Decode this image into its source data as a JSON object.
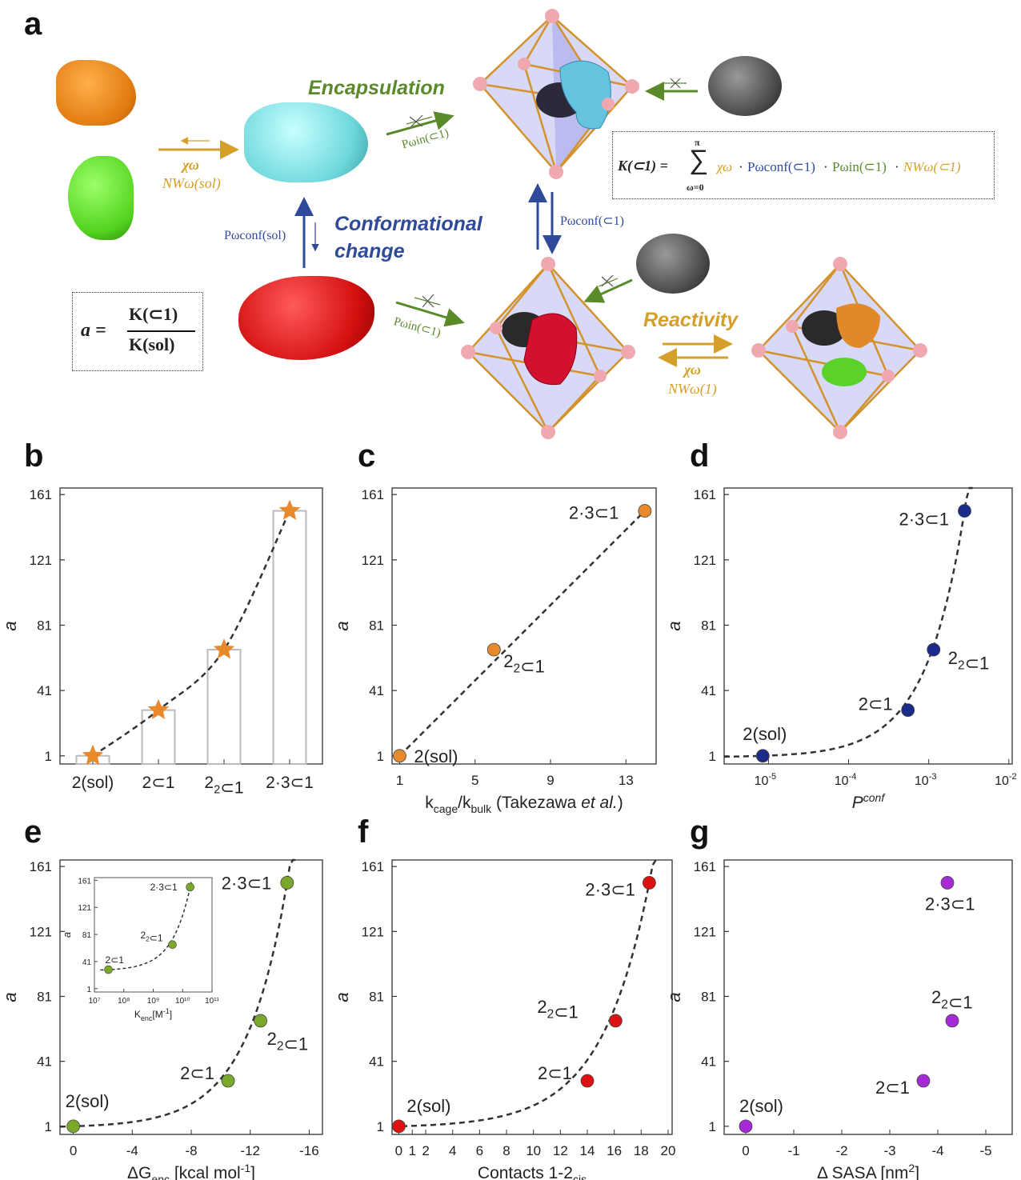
{
  "panels": {
    "a": "a",
    "b": "b",
    "c": "c",
    "d": "d",
    "e": "e",
    "f": "f",
    "g": "g"
  },
  "schematic": {
    "encapsulation": "Encapsulation",
    "conformational_change": [
      "Conformational",
      "change"
    ],
    "reactivity": "Reactivity",
    "chi": "χω",
    "nw_sol": "NWω(sol)",
    "nw_1": "NWω(1)",
    "pconf_sol": "Pωconf(sol)",
    "pconf_cage": "Pωconf(⊂1)",
    "pin_cage": "Pωin(⊂1)",
    "eq_a_lhs": "a =",
    "eq_a_num": "K(⊂1)",
    "eq_a_den": "K(sol)",
    "eq_k_lhs": "K(⊂1) =",
    "eq_k_sum_top": "π",
    "eq_k_sum_bot": "ω=0",
    "eq_k_terms": [
      "χω",
      "·",
      "Pωconf(⊂1)",
      "·",
      "Pωin(⊂1)",
      "·",
      "NWω(⊂1)"
    ],
    "colors": {
      "gold": "#d4a02a",
      "green": "#5a8a2a",
      "blue": "#2f4a9a"
    }
  },
  "chart_data": [
    {
      "panel": "b",
      "type": "bar",
      "categories": [
        "2(sol)",
        "2⊂1",
        "2₂⊂1",
        "2·3⊂1"
      ],
      "values": [
        1,
        29,
        66,
        151
      ],
      "markers": [
        1,
        29,
        66,
        151
      ],
      "ylabel": "a",
      "xlabel": "",
      "ylim": [
        -4,
        165
      ],
      "yticks": [
        1,
        41,
        81,
        121,
        161
      ],
      "marker": "star",
      "color": "#e88a2c"
    },
    {
      "panel": "c",
      "type": "scatter",
      "points": [
        {
          "x": 1,
          "y": 1,
          "label": "2(sol)"
        },
        {
          "x": 6,
          "y": 66,
          "label": "2₂⊂1"
        },
        {
          "x": 14,
          "y": 151,
          "label": "2·3⊂1"
        }
      ],
      "xlabel": "kcage/kbulk (Takezawa et al.)",
      "ylabel": "a",
      "xlim": [
        0.6,
        14.6
      ],
      "xticks": [
        1,
        5,
        9,
        13
      ],
      "ylim": [
        -4,
        165
      ],
      "yticks": [
        1,
        41,
        81,
        121,
        161
      ],
      "color": "#e88a2c",
      "fit": "linear"
    },
    {
      "panel": "d",
      "type": "scatter",
      "xscale": "log",
      "points": [
        {
          "x": 8.5e-06,
          "y": 1,
          "label": "2(sol)"
        },
        {
          "x": 0.00055,
          "y": 29,
          "label": "2⊂1"
        },
        {
          "x": 0.00115,
          "y": 66,
          "label": "2₂⊂1"
        },
        {
          "x": 0.0028,
          "y": 151,
          "label": "2·3⊂1"
        }
      ],
      "xlabel": "Pconf",
      "ylabel": "a",
      "xlim": [
        2.8e-06,
        0.011
      ],
      "xticks": [
        "10-5",
        "10-4",
        "10-3",
        "10-2"
      ],
      "ylim": [
        -4,
        165
      ],
      "yticks": [
        1,
        41,
        81,
        121,
        161
      ],
      "color": "#1a2b8a",
      "fit": "exponential"
    },
    {
      "panel": "e",
      "type": "scatter",
      "points": [
        {
          "x": 0,
          "y": 1,
          "label": "2(sol)"
        },
        {
          "x": -10.5,
          "y": 29,
          "label": "2⊂1"
        },
        {
          "x": -12.7,
          "y": 66,
          "label": "2₂⊂1"
        },
        {
          "x": -14.5,
          "y": 151,
          "label": "2·3⊂1"
        }
      ],
      "xlabel": "ΔGenc [kcal mol-1]",
      "ylabel": "a",
      "xlim": [
        0.9,
        -16.9
      ],
      "xticks": [
        0,
        -4,
        -8,
        -12,
        -16
      ],
      "ylim": [
        -4,
        165
      ],
      "yticks": [
        1,
        41,
        81,
        121,
        161
      ],
      "color": "#7aa82a",
      "fit": "exponential",
      "inset": {
        "type": "scatter",
        "xscale": "log",
        "points": [
          {
            "x": 30000000,
            "y": 29,
            "label": "2⊂1"
          },
          {
            "x": 4500000000,
            "y": 66,
            "label": "2₂⊂1"
          },
          {
            "x": 18000000000,
            "y": 151,
            "label": "2·3⊂1"
          }
        ],
        "xlabel": "Kenc[M-1]",
        "ylabel": "a",
        "xticks": [
          "10⁷",
          "10⁸",
          "10⁹",
          "10¹⁰",
          "10¹¹"
        ],
        "yticks": [
          1,
          41,
          81,
          121,
          161
        ]
      }
    },
    {
      "panel": "f",
      "type": "scatter",
      "points": [
        {
          "x": 0,
          "y": 1,
          "label": "2(sol)"
        },
        {
          "x": 14,
          "y": 29,
          "label": "2⊂1"
        },
        {
          "x": 16.1,
          "y": 66,
          "label": "2₂⊂1"
        },
        {
          "x": 18.6,
          "y": 151,
          "label": "2·3⊂1"
        }
      ],
      "xlabel": "Contacts 1-2cis",
      "ylabel": "a",
      "xlim": [
        -0.5,
        20.3
      ],
      "xticks": [
        0,
        1,
        2,
        4,
        6,
        8,
        10,
        12,
        14,
        16,
        18,
        20
      ],
      "ylim": [
        -4,
        165
      ],
      "yticks": [
        1,
        41,
        81,
        121,
        161
      ],
      "color": "#dd1111",
      "fit": "exponential"
    },
    {
      "panel": "g",
      "type": "scatter",
      "points": [
        {
          "x": 0,
          "y": 1,
          "label": "2(sol)"
        },
        {
          "x": -3.7,
          "y": 29,
          "label": "2⊂1"
        },
        {
          "x": -4.3,
          "y": 66,
          "label": "2₂⊂1"
        },
        {
          "x": -4.2,
          "y": 151,
          "label": "2·3⊂1"
        }
      ],
      "xlabel": "Δ SASA [nm2]",
      "ylabel": "a",
      "xlim": [
        0.45,
        -5.55
      ],
      "xticks": [
        0,
        -1,
        -2,
        -3,
        -4,
        -5
      ],
      "ylim": [
        -4,
        165
      ],
      "yticks": [
        1,
        41,
        81,
        121,
        161
      ],
      "color": "#a52ad6"
    }
  ]
}
